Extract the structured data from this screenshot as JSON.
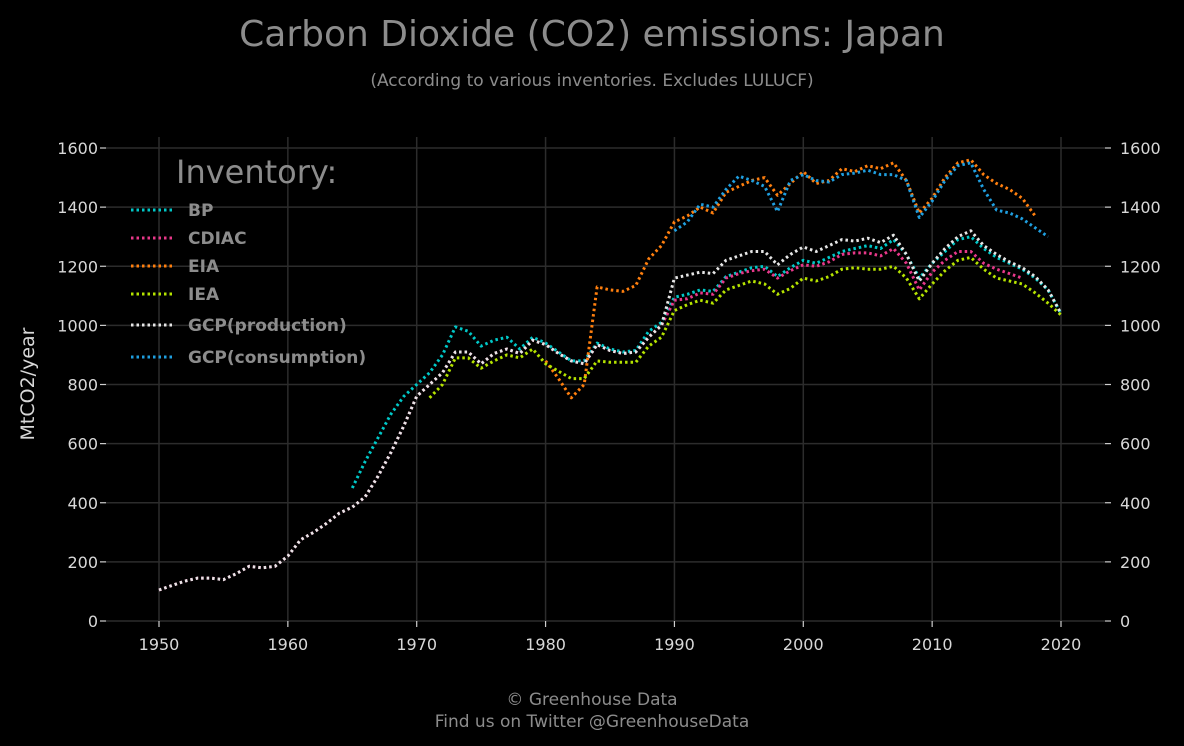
{
  "chart_data": {
    "type": "line",
    "title": "Carbon Dioxide (CO2) emissions: Japan",
    "subtitle": "(According to various inventories. Excludes LULUCF)",
    "ylabel": "MtCO2/year",
    "xlim": [
      1947,
      2023
    ],
    "ylim": [
      0,
      1640
    ],
    "x_ticks": [
      1950,
      1960,
      1970,
      1980,
      1990,
      2000,
      2010,
      2020
    ],
    "y_ticks": [
      0,
      200,
      400,
      600,
      800,
      1000,
      1200,
      1400,
      1600
    ],
    "grid": true,
    "legend": {
      "title": "Inventory:",
      "placement": "top-left"
    },
    "series": [
      {
        "name": "BP",
        "color": "#00c8c8",
        "x": [
          1965,
          1966,
          1967,
          1968,
          1969,
          1970,
          1971,
          1972,
          1973,
          1974,
          1975,
          1976,
          1977,
          1978,
          1979,
          1980,
          1981,
          1982,
          1983,
          1984,
          1985,
          1986,
          1987,
          1988,
          1989,
          1990,
          1991,
          1992,
          1993,
          1994,
          1995,
          1996,
          1997,
          1998,
          1999,
          2000,
          2001,
          2002,
          2003,
          2004,
          2005,
          2006,
          2007,
          2008,
          2009,
          2010,
          2011,
          2012,
          2013,
          2014,
          2015,
          2016,
          2017,
          2018,
          2019,
          2020
        ],
        "y": [
          450,
          540,
          620,
          700,
          760,
          800,
          840,
          900,
          995,
          980,
          930,
          950,
          960,
          920,
          960,
          940,
          910,
          880,
          880,
          940,
          920,
          910,
          915,
          980,
          1010,
          1095,
          1105,
          1120,
          1115,
          1165,
          1180,
          1195,
          1200,
          1165,
          1195,
          1220,
          1210,
          1230,
          1250,
          1260,
          1270,
          1260,
          1290,
          1240,
          1160,
          1210,
          1250,
          1290,
          1300,
          1260,
          1230,
          1210,
          1190,
          1160,
          1120,
          1040
        ]
      },
      {
        "name": "CDIAC",
        "color": "#e8388a",
        "x": [
          1950,
          1951,
          1952,
          1953,
          1954,
          1955,
          1956,
          1957,
          1958,
          1959,
          1960,
          1961,
          1962,
          1963,
          1964,
          1965,
          1966,
          1967,
          1968,
          1969,
          1970,
          1971,
          1972,
          1973,
          1974,
          1975,
          1976,
          1977,
          1978,
          1979,
          1980,
          1981,
          1982,
          1983,
          1984,
          1985,
          1986,
          1987,
          1988,
          1989,
          1990,
          1991,
          1992,
          1993,
          1994,
          1995,
          1996,
          1997,
          1998,
          1999,
          2000,
          2001,
          2002,
          2003,
          2004,
          2005,
          2006,
          2007,
          2008,
          2009,
          2010,
          2011,
          2012,
          2013,
          2014,
          2015,
          2016,
          2017
        ],
        "y": [
          105,
          120,
          135,
          145,
          145,
          140,
          160,
          185,
          180,
          185,
          220,
          275,
          300,
          330,
          365,
          385,
          420,
          490,
          570,
          660,
          760,
          800,
          840,
          910,
          910,
          870,
          905,
          920,
          905,
          950,
          935,
          905,
          880,
          870,
          935,
          915,
          905,
          910,
          960,
          1000,
          1085,
          1090,
          1110,
          1105,
          1160,
          1175,
          1185,
          1190,
          1160,
          1185,
          1205,
          1200,
          1215,
          1240,
          1245,
          1245,
          1235,
          1260,
          1210,
          1120,
          1180,
          1220,
          1250,
          1250,
          1210,
          1190,
          1175,
          1160
        ]
      },
      {
        "name": "EIA",
        "color": "#ff7f0e",
        "x": [
          1980,
          1981,
          1982,
          1983,
          1984,
          1985,
          1986,
          1987,
          1988,
          1989,
          1990,
          1991,
          1992,
          1993,
          1994,
          1995,
          1996,
          1997,
          1998,
          1999,
          2000,
          2001,
          2002,
          2003,
          2004,
          2005,
          2006,
          2007,
          2008,
          2009,
          2010,
          2011,
          2012,
          2013,
          2014,
          2015,
          2016,
          2017,
          2018
        ],
        "y": [
          880,
          820,
          755,
          800,
          1130,
          1120,
          1115,
          1135,
          1225,
          1270,
          1350,
          1370,
          1400,
          1380,
          1450,
          1470,
          1490,
          1500,
          1440,
          1480,
          1520,
          1480,
          1490,
          1530,
          1520,
          1540,
          1530,
          1550,
          1490,
          1380,
          1430,
          1500,
          1550,
          1560,
          1510,
          1480,
          1460,
          1430,
          1370
        ]
      },
      {
        "name": "IEA",
        "color": "#b5e300",
        "x": [
          1971,
          1972,
          1973,
          1974,
          1975,
          1976,
          1977,
          1978,
          1979,
          1980,
          1981,
          1982,
          1983,
          1984,
          1985,
          1986,
          1987,
          1988,
          1989,
          1990,
          1991,
          1992,
          1993,
          1994,
          1995,
          1996,
          1997,
          1998,
          1999,
          2000,
          2001,
          2002,
          2003,
          2004,
          2005,
          2006,
          2007,
          2008,
          2009,
          2010,
          2011,
          2012,
          2013,
          2014,
          2015,
          2016,
          2017,
          2018,
          2019,
          2020
        ],
        "y": [
          755,
          800,
          890,
          890,
          855,
          880,
          900,
          890,
          920,
          870,
          845,
          820,
          820,
          880,
          875,
          875,
          875,
          930,
          960,
          1050,
          1070,
          1085,
          1075,
          1120,
          1135,
          1150,
          1140,
          1105,
          1125,
          1160,
          1150,
          1165,
          1190,
          1195,
          1190,
          1190,
          1200,
          1160,
          1090,
          1140,
          1185,
          1220,
          1230,
          1190,
          1160,
          1150,
          1140,
          1110,
          1075,
          1035
        ]
      },
      {
        "name": "GCP(production)",
        "color": "#e6e6e6",
        "x": [
          1950,
          1951,
          1952,
          1953,
          1954,
          1955,
          1956,
          1957,
          1958,
          1959,
          1960,
          1961,
          1962,
          1963,
          1964,
          1965,
          1966,
          1967,
          1968,
          1969,
          1970,
          1971,
          1972,
          1973,
          1974,
          1975,
          1976,
          1977,
          1978,
          1979,
          1980,
          1981,
          1982,
          1983,
          1984,
          1985,
          1986,
          1987,
          1988,
          1989,
          1990,
          1991,
          1992,
          1993,
          1994,
          1995,
          1996,
          1997,
          1998,
          1999,
          2000,
          2001,
          2002,
          2003,
          2004,
          2005,
          2006,
          2007,
          2008,
          2009,
          2010,
          2011,
          2012,
          2013,
          2014,
          2015,
          2016,
          2017,
          2018,
          2019,
          2020
        ],
        "y": [
          105,
          120,
          135,
          145,
          145,
          140,
          160,
          185,
          180,
          185,
          220,
          275,
          300,
          330,
          365,
          385,
          420,
          490,
          570,
          660,
          760,
          800,
          840,
          910,
          910,
          870,
          905,
          920,
          905,
          950,
          935,
          905,
          880,
          870,
          935,
          915,
          905,
          910,
          960,
          1000,
          1160,
          1170,
          1180,
          1175,
          1220,
          1235,
          1250,
          1250,
          1205,
          1240,
          1265,
          1250,
          1270,
          1290,
          1285,
          1295,
          1280,
          1305,
          1240,
          1150,
          1210,
          1260,
          1300,
          1320,
          1270,
          1240,
          1215,
          1195,
          1165,
          1120,
          1040
        ]
      },
      {
        "name": "GCP(consumption)",
        "color": "#1f9fe0",
        "x": [
          1990,
          1991,
          1992,
          1993,
          1994,
          1995,
          1996,
          1997,
          1998,
          1999,
          2000,
          2001,
          2002,
          2003,
          2004,
          2005,
          2006,
          2007,
          2008,
          2009,
          2010,
          2011,
          2012,
          2013,
          2014,
          2015,
          2016,
          2017,
          2018,
          2019
        ],
        "y": [
          1320,
          1350,
          1410,
          1400,
          1460,
          1505,
          1490,
          1470,
          1385,
          1490,
          1510,
          1490,
          1485,
          1510,
          1515,
          1525,
          1510,
          1510,
          1490,
          1365,
          1420,
          1490,
          1540,
          1550,
          1460,
          1390,
          1380,
          1360,
          1330,
          1300
        ]
      }
    ]
  },
  "footer": {
    "line1": "© Greenhouse Data",
    "line2": "Find us on Twitter @GreenhouseData"
  }
}
